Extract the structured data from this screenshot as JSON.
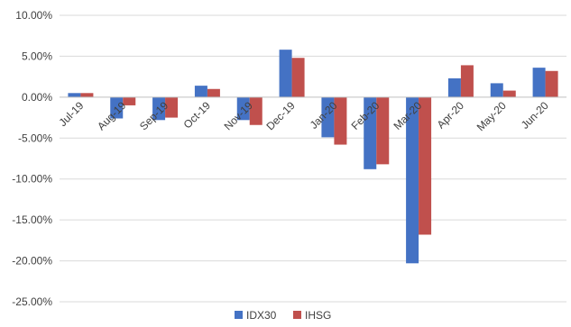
{
  "chart_data": {
    "type": "bar",
    "categories": [
      "Jul-19",
      "Aug-19",
      "Sep-19",
      "Oct-19",
      "Nov-19",
      "Dec-19",
      "Jan-20",
      "Feb-20",
      "Mar-20",
      "Apr-20",
      "May-20",
      "Jun-20"
    ],
    "series": [
      {
        "name": "IDX30",
        "color": "#4472C4",
        "values": [
          0.5,
          -2.6,
          -2.8,
          1.4,
          -2.8,
          5.8,
          -4.9,
          -8.8,
          -20.3,
          2.3,
          1.7,
          3.6
        ]
      },
      {
        "name": "IHSG",
        "color": "#C0504D",
        "values": [
          0.5,
          -1.0,
          -2.5,
          1.0,
          -3.4,
          4.8,
          -5.8,
          -8.2,
          -16.8,
          3.9,
          0.8,
          3.2
        ]
      }
    ],
    "ylim": [
      -25,
      10
    ],
    "yticks": [
      10,
      5,
      0,
      -5,
      -10,
      -15,
      -20,
      -25
    ],
    "ytick_labels": [
      "10.00%",
      "5.00%",
      "0.00%",
      "-5.00%",
      "-10.00%",
      "-15.00%",
      "-20.00%",
      "-25.00%"
    ],
    "grid": true,
    "legend_position": "bottom",
    "title": "",
    "xlabel": "",
    "ylabel": ""
  }
}
